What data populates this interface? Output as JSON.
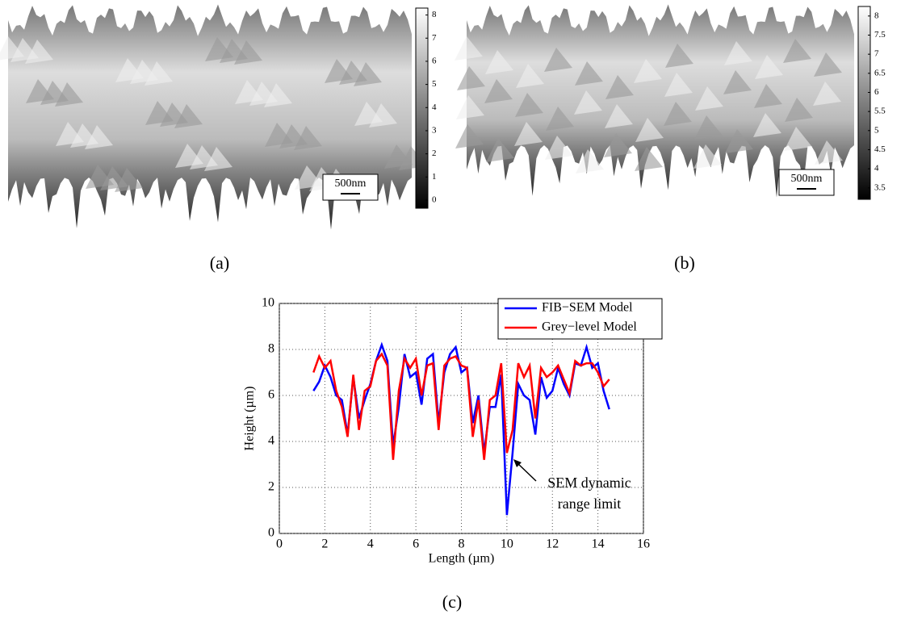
{
  "chart_data": [
    {
      "type": "surface",
      "label": "(a)",
      "scale_bar": "500nm",
      "ylim": [
        -0.35,
        8.3
      ],
      "yticks": [
        0,
        1,
        2,
        3,
        4,
        5,
        6,
        7,
        8
      ]
    },
    {
      "type": "surface",
      "label": "(b)",
      "scale_bar": "500nm",
      "ylim": [
        3.2,
        8.25
      ],
      "yticks": [
        3.5,
        4,
        4.5,
        5,
        5.5,
        6,
        6.5,
        7,
        7.5,
        8
      ]
    },
    {
      "type": "line",
      "label": "(c)",
      "xlabel": "Length (µm)",
      "ylabel": "Height (µm)",
      "annotation": [
        "SEM dynamic",
        "range limit"
      ],
      "grid": true,
      "xlim": [
        0,
        16
      ],
      "xticks": [
        0,
        2,
        4,
        6,
        8,
        10,
        12,
        14,
        16
      ],
      "ylim": [
        0,
        10
      ],
      "yticks": [
        0,
        2,
        4,
        6,
        8,
        10
      ],
      "x": [
        1.5,
        1.75,
        2,
        2.25,
        2.5,
        2.75,
        3,
        3.25,
        3.5,
        3.75,
        4,
        4.25,
        4.5,
        4.75,
        5,
        5.25,
        5.5,
        5.75,
        6,
        6.25,
        6.5,
        6.75,
        7,
        7.25,
        7.5,
        7.75,
        8,
        8.25,
        8.5,
        8.75,
        9,
        9.25,
        9.5,
        9.75,
        10,
        10.25,
        10.5,
        10.75,
        11,
        11.25,
        11.5,
        11.75,
        12,
        12.25,
        12.5,
        12.75,
        13,
        13.25,
        13.5,
        13.75,
        14,
        14.25,
        14.5
      ],
      "series": [
        {
          "name": "FIB−SEM Model",
          "color": "#0000ff",
          "values": [
            6.2,
            6.6,
            7.3,
            6.8,
            6.0,
            5.8,
            4.3,
            6.8,
            5.0,
            5.8,
            6.5,
            7.5,
            8.2,
            7.5,
            3.8,
            5.5,
            7.8,
            6.8,
            7.0,
            5.6,
            7.6,
            7.8,
            4.8,
            7.0,
            7.8,
            8.1,
            7.0,
            7.2,
            4.8,
            6.0,
            3.5,
            5.5,
            5.5,
            6.9,
            0.8,
            3.5,
            6.5,
            6.0,
            5.8,
            4.3,
            6.8,
            5.9,
            6.2,
            7.2,
            6.5,
            6.0,
            7.4,
            7.3,
            8.1,
            7.2,
            7.4,
            6.2,
            5.4
          ]
        },
        {
          "name": "Grey−level Model",
          "color": "#ff0000",
          "values": [
            7.0,
            7.7,
            7.2,
            7.5,
            6.2,
            5.5,
            4.2,
            6.9,
            4.5,
            6.2,
            6.4,
            7.5,
            7.8,
            7.3,
            3.2,
            6.2,
            7.6,
            7.2,
            7.6,
            6.0,
            7.3,
            7.4,
            4.5,
            7.3,
            7.6,
            7.7,
            7.3,
            7.2,
            4.2,
            5.8,
            3.2,
            5.8,
            6.0,
            7.4,
            3.5,
            4.5,
            7.4,
            6.8,
            7.3,
            5.0,
            7.2,
            6.8,
            7.0,
            7.3,
            6.7,
            6.1,
            7.5,
            7.3,
            7.4,
            7.4,
            7.0,
            6.4,
            6.7
          ]
        }
      ]
    }
  ]
}
